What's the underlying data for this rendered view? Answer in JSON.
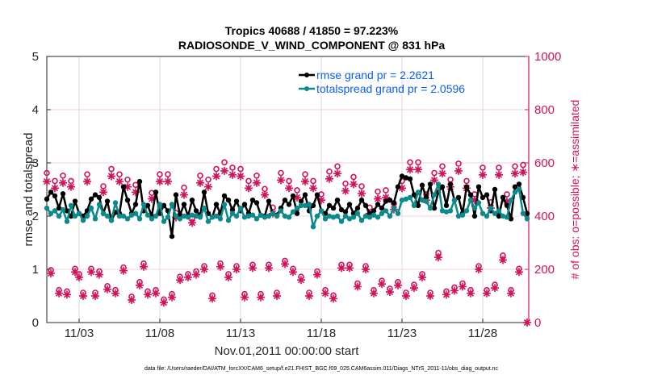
{
  "chart_data": {
    "type": "line",
    "title": [
      "Tropics 40688 / 41850 = 97.223%",
      "RADIOSONDE_V_WIND_COMPONENT @ 831 hPa"
    ],
    "xlabel": "Nov.01,2011 00:00:00 start",
    "ylabel": "rmse and totalspread",
    "ylabel_right": "# of obs: o=possible; ∗=assimilated",
    "footer": "data file: /Users/raeder/DAI/ATM_forcXX/CAM6_setup/f.e21.FHIST_BGC.f09_025.CAM6assim.011/Diags_NTrS_2011-11/obs_diag_output.nc",
    "x_start_day": 1,
    "x_step_days": 0.25,
    "xlim_days": [
      1,
      31
    ],
    "x_ticks": [
      {
        "day": 3,
        "label": "11/03"
      },
      {
        "day": 8,
        "label": "11/08"
      },
      {
        "day": 13,
        "label": "11/13"
      },
      {
        "day": 18,
        "label": "11/18"
      },
      {
        "day": 23,
        "label": "11/23"
      },
      {
        "day": 28,
        "label": "11/28"
      }
    ],
    "ylim": [
      0,
      5
    ],
    "y_ticks": [
      "0",
      "1",
      "2",
      "3",
      "4",
      "5"
    ],
    "ylim_right": [
      0,
      1000
    ],
    "y_ticks_right": [
      "0",
      "200",
      "400",
      "600",
      "800",
      "1000"
    ],
    "grid": true,
    "legend_position": "top-right",
    "series": [
      {
        "name": "rmse grand pr = 2.2621",
        "color": "#000000",
        "axis": "left",
        "values": [
          2.32,
          2.45,
          2.38,
          2.15,
          2.42,
          2.1,
          2.0,
          2.28,
          2.05,
          2.0,
          2.1,
          2.32,
          2.4,
          2.35,
          2.05,
          2.28,
          1.92,
          2.07,
          2.05,
          2.55,
          2.3,
          2.05,
          2.22,
          2.65,
          2.1,
          2.2,
          2.0,
          2.45,
          2.05,
          2.2,
          2.1,
          1.62,
          2.4,
          2.02,
          2.22,
          2.0,
          2.3,
          2.1,
          2.02,
          2.45,
          2.05,
          1.98,
          2.22,
          2.05,
          2.38,
          2.3,
          2.12,
          2.28,
          2.1,
          2.22,
          2.05,
          2.3,
          2.25,
          2.02,
          2.0,
          2.28,
          2.05,
          2.02,
          2.15,
          2.3,
          2.22,
          2.38,
          2.05,
          2.28,
          2.4,
          2.1,
          2.2,
          2.4,
          2.1,
          2.05,
          2.2,
          2.15,
          2.3,
          2.12,
          2.08,
          2.22,
          2.05,
          2.15,
          2.3,
          2.2,
          2.05,
          2.1,
          2.22,
          2.15,
          2.28,
          2.3,
          2.25,
          2.55,
          2.75,
          2.72,
          2.7,
          2.4,
          2.2,
          2.58,
          2.35,
          2.6,
          2.15,
          2.45,
          2.55,
          2.2,
          2.6,
          2.3,
          2.35,
          2.05,
          2.55,
          2.4,
          2.0,
          2.55,
          2.35,
          2.4,
          2.1,
          2.5,
          2.0,
          2.35,
          2.2,
          1.95,
          2.55,
          2.6,
          2.35,
          2.05
        ]
      },
      {
        "name": "totalspread grand pr = 2.0596",
        "color": "#0a8a8a",
        "axis": "left",
        "values": [
          2.15,
          2.05,
          2.1,
          2.0,
          2.12,
          1.9,
          2.2,
          2.0,
          2.05,
          1.92,
          2.0,
          2.15,
          1.95,
          2.22,
          2.05,
          2.0,
          1.92,
          2.25,
          2.0,
          2.0,
          1.95,
          2.02,
          2.05,
          1.95,
          2.22,
          2.02,
          1.95,
          2.0,
          2.22,
          1.9,
          1.98,
          2.22,
          2.0,
          1.95,
          2.0,
          1.98,
          2.02,
          2.0,
          1.98,
          2.15,
          1.9,
          1.98,
          2.0,
          1.95,
          2.22,
          1.92,
          2.05,
          2.0,
          2.15,
          1.98,
          2.0,
          2.02,
          1.95,
          2.02,
          1.98,
          2.0,
          2.05,
          2.0,
          2.1,
          2.0,
          1.98,
          2.08,
          2.15,
          2.2,
          2.2,
          2.22,
          1.8,
          2.0,
          2.1,
          1.95,
          2.0,
          1.98,
          2.0,
          1.9,
          2.0,
          1.95,
          1.98,
          2.05,
          1.92,
          2.0,
          1.98,
          2.02,
          1.98,
          2.05,
          2.1,
          2.0,
          2.15,
          2.05,
          2.3,
          2.32,
          2.35,
          2.2,
          2.45,
          2.3,
          2.28,
          2.15,
          2.4,
          2.6,
          2.1,
          2.08,
          2.1,
          2.3,
          2.0,
          2.02,
          2.1,
          2.3,
          2.15,
          2.25,
          2.05,
          2.0,
          2.15,
          2.05,
          2.1,
          2.0,
          1.98,
          2.3,
          2.45,
          2.5,
          2.05,
          1.95
        ]
      },
      {
        "name": "obs possible",
        "color": "#d6105a",
        "axis": "right",
        "marker": "o",
        "values": [
          550,
          185,
          520,
          110,
          540,
          105,
          520,
          190,
          170,
          100,
          545,
          190,
          100,
          180,
          500,
          125,
          565,
          110,
          545,
          195,
          525,
          85,
          505,
          140,
          210,
          105,
          475,
          110,
          545,
          75,
          545,
          95,
          400,
          160,
          495,
          170,
          380,
          180,
          540,
          200,
          525,
          90,
          565,
          210,
          590,
          170,
          570,
          200,
          565,
          95,
          520,
          205,
          540,
          95,
          490,
          205,
          420,
          100,
          550,
          220,
          520,
          190,
          485,
          160,
          545,
          100,
          520,
          180,
          470,
          110,
          555,
          90,
          575,
          205,
          510,
          205,
          535,
          135,
          500,
          200,
          420,
          110,
          480,
          145,
          485,
          115,
          435,
          140,
          520,
          100,
          590,
          130,
          590,
          170,
          470,
          100,
          550,
          250,
          575,
          105,
          525,
          120,
          585,
          135,
          520,
          110,
          470,
          200,
          570,
          110,
          440,
          130,
          570,
          240,
          470,
          110,
          575,
          190,
          580,
          0
        ]
      },
      {
        "name": "obs assimilated",
        "color": "#d6105a",
        "axis": "right",
        "marker": "*",
        "values": [
          530,
          185,
          505,
          110,
          525,
          105,
          510,
          190,
          170,
          100,
          530,
          190,
          100,
          180,
          490,
          125,
          550,
          110,
          530,
          195,
          510,
          85,
          490,
          140,
          210,
          105,
          465,
          110,
          530,
          75,
          530,
          95,
          395,
          160,
          480,
          170,
          375,
          180,
          525,
          200,
          510,
          90,
          550,
          210,
          570,
          170,
          555,
          200,
          550,
          95,
          505,
          205,
          525,
          95,
          480,
          205,
          410,
          100,
          535,
          220,
          505,
          190,
          470,
          160,
          530,
          100,
          505,
          180,
          460,
          110,
          540,
          90,
          560,
          205,
          495,
          205,
          520,
          135,
          485,
          200,
          410,
          110,
          465,
          145,
          470,
          115,
          425,
          140,
          505,
          100,
          575,
          130,
          575,
          170,
          460,
          100,
          535,
          245,
          560,
          105,
          510,
          120,
          570,
          135,
          505,
          110,
          460,
          200,
          555,
          110,
          430,
          130,
          555,
          235,
          455,
          110,
          560,
          190,
          565,
          0
        ]
      }
    ]
  }
}
